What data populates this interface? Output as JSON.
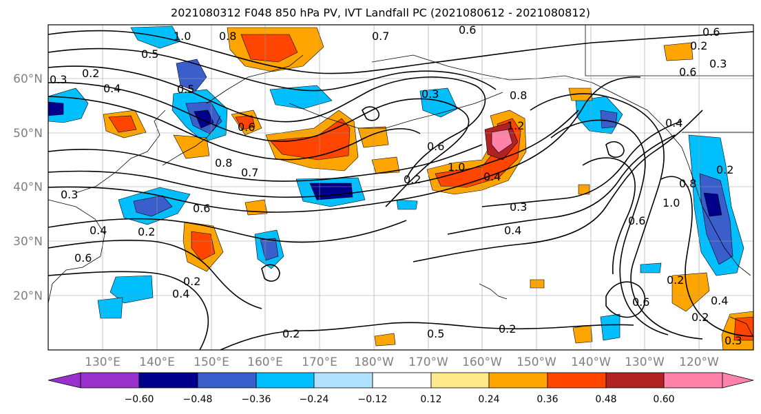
{
  "title": "2021080312 F048 850 hPa PV, IVT Landfall PC (2021080612 - 2021080812)",
  "map": {
    "lat_ticks": [
      "60°N",
      "50°N",
      "40°N",
      "30°N",
      "20°N"
    ],
    "lon_ticks": [
      "130°E",
      "140°E",
      "150°E",
      "160°E",
      "170°E",
      "180°W",
      "170°W",
      "160°W",
      "150°W",
      "140°W",
      "130°W",
      "120°W"
    ],
    "contour_labels": [
      "0.3",
      "0.2",
      "0.4",
      "0.5",
      "1.0",
      "0.8",
      "0.5",
      "0.7",
      "0.6",
      "0.3",
      "0.6",
      "0.8",
      "0.7",
      "0.3",
      "0.6",
      "0.4",
      "0.2",
      "0.2",
      "0.6",
      "0.4",
      "0.2",
      "0.2",
      "0.2",
      "0.8",
      "0.6",
      "1.0",
      "1.2",
      "0.4",
      "0.3",
      "0.4",
      "0.4",
      "1.0",
      "0.8",
      "0.6",
      "0.6",
      "0.2",
      "0.3",
      "0.6",
      "0.2",
      "0.4",
      "0.2",
      "0.3",
      "0.2",
      "0.6",
      "0.5"
    ]
  },
  "colorbar": {
    "ticks": [
      "−0.60",
      "−0.48",
      "−0.36",
      "−0.24",
      "−0.12",
      "0.12",
      "0.24",
      "0.36",
      "0.48",
      "0.60"
    ],
    "colors": [
      "#9932cc",
      "#00008b",
      "#3a5fcd",
      "#00bfff",
      "#b0e2ff",
      "#ffffff",
      "#ffe98a",
      "#ffa500",
      "#ff4500",
      "#b22222",
      "#ff82ab"
    ]
  },
  "chart_data": {
    "type": "heatmap",
    "title": "2021080312 F048 850 hPa PV, IVT Landfall PC (2021080612 - 2021080812)",
    "xlabel": "",
    "ylabel": "",
    "x_ticks": [
      "130°E",
      "140°E",
      "150°E",
      "160°E",
      "170°E",
      "180°W",
      "170°W",
      "160°W",
      "150°W",
      "140°W",
      "130°W",
      "120°W"
    ],
    "y_ticks": [
      "60°N",
      "50°N",
      "40°N",
      "30°N",
      "20°N"
    ],
    "color_levels": [
      -0.6,
      -0.48,
      -0.36,
      -0.24,
      -0.12,
      0.12,
      0.24,
      0.36,
      0.48,
      0.6
    ],
    "colorbar_extend": "both",
    "grid": true
  }
}
